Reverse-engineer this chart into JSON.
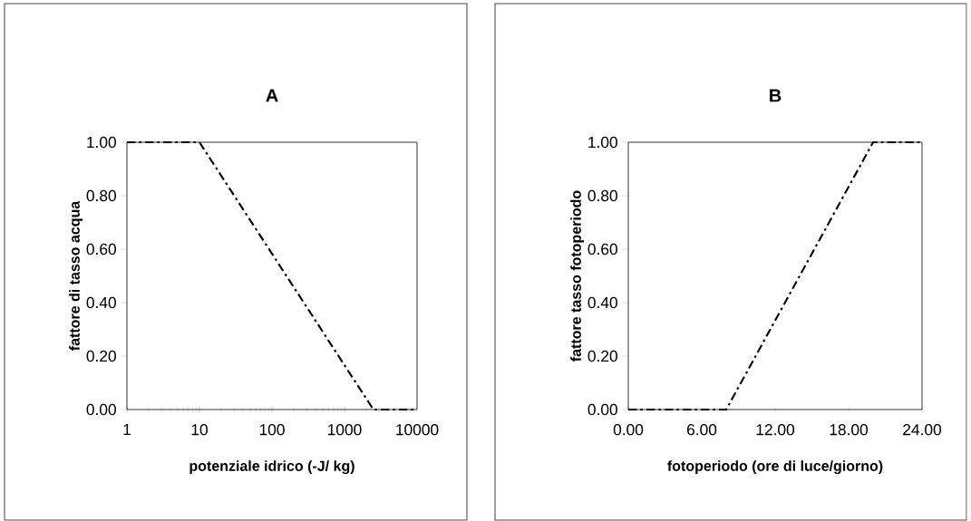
{
  "chart_data": [
    {
      "type": "line",
      "title": "A",
      "xlabel": "potenziale idrico  (-J/ kg)",
      "ylabel": "fattore di tasso acqua",
      "log": "x",
      "line_style": "dashed",
      "marker": "none",
      "xlim": [
        1,
        10000
      ],
      "ylim": [
        0,
        1
      ],
      "xticks": [
        1,
        10,
        100,
        1000,
        10000
      ],
      "yticks": [
        {
          "value": 0,
          "label": "0.00"
        },
        {
          "value": 0.2,
          "label": "0.20"
        },
        {
          "value": 0.4,
          "label": "0.40"
        },
        {
          "value": 0.6,
          "label": "0.60"
        },
        {
          "value": 0.8,
          "label": "0.80"
        },
        {
          "value": 1,
          "label": "1.00"
        }
      ],
      "series": [
        {
          "color": "#000000",
          "x": [
            1,
            10,
            2500,
            10000
          ],
          "values": [
            1,
            1,
            0,
            0
          ]
        }
      ]
    },
    {
      "type": "line",
      "title": "B",
      "xlabel": "fotoperiodo    (ore di luce/giorno)",
      "ylabel": "fattore tasso fotoperiodo",
      "line_style": "dashed",
      "marker": "none",
      "xlim": [
        0,
        24
      ],
      "ylim": [
        0,
        1
      ],
      "xticks": [
        {
          "value": 0,
          "label": "0.00"
        },
        {
          "value": 6,
          "label": "6.00"
        },
        {
          "value": 12,
          "label": "12.00"
        },
        {
          "value": 18,
          "label": "18.00"
        },
        {
          "value": 24,
          "label": "24.00"
        }
      ],
      "yticks": [
        {
          "value": 0,
          "label": "0.00"
        },
        {
          "value": 0.2,
          "label": "0.20"
        },
        {
          "value": 0.4,
          "label": "0.40"
        },
        {
          "value": 0.6,
          "label": "0.60"
        },
        {
          "value": 0.8,
          "label": "0.80"
        },
        {
          "value": 1,
          "label": "1.00"
        }
      ],
      "series": [
        {
          "color": "#000000",
          "x": [
            0,
            8,
            20,
            24
          ],
          "values": [
            0,
            0,
            1,
            1
          ]
        }
      ]
    }
  ]
}
